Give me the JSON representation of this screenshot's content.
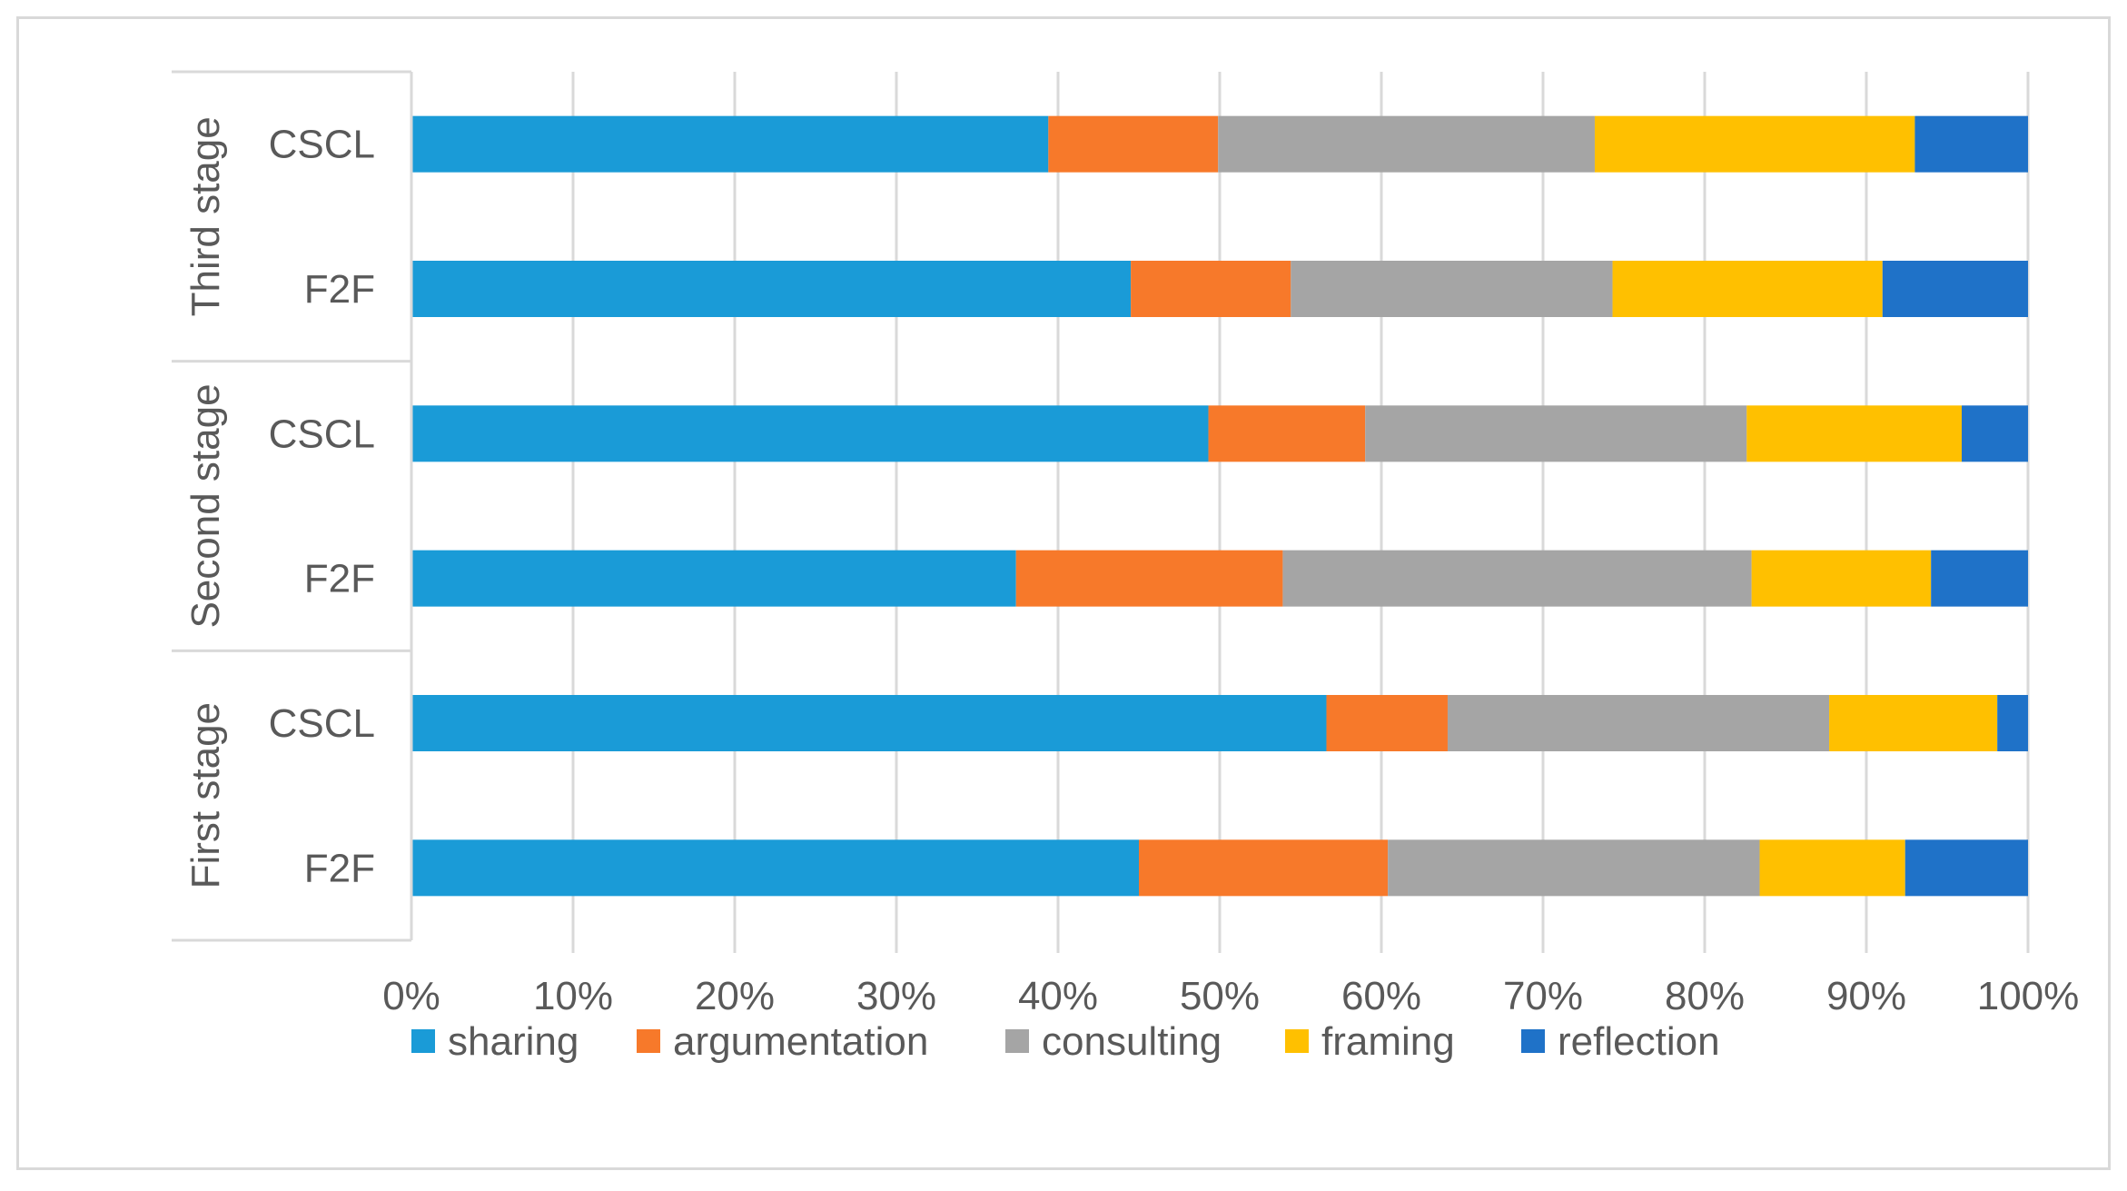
{
  "chart_data": {
    "type": "bar",
    "orientation": "horizontal",
    "stacking": "percent",
    "title": "",
    "xlabel": "",
    "ylabel": "",
    "xlim": [
      0,
      100
    ],
    "x_ticks": [
      "0%",
      "10%",
      "20%",
      "30%",
      "40%",
      "50%",
      "60%",
      "70%",
      "80%",
      "90%",
      "100%"
    ],
    "grid": true,
    "legend_position": "bottom",
    "groups": [
      {
        "label": "Third stage",
        "categories": [
          "CSCL",
          "F2F"
        ]
      },
      {
        "label": "Second stage",
        "categories": [
          "CSCL",
          "F2F"
        ]
      },
      {
        "label": "First stage",
        "categories": [
          "CSCL",
          "F2F"
        ]
      }
    ],
    "rows": [
      {
        "group": "Third stage",
        "category": "CSCL"
      },
      {
        "group": "Third stage",
        "category": "F2F"
      },
      {
        "group": "Second stage",
        "category": "CSCL"
      },
      {
        "group": "Second stage",
        "category": "F2F"
      },
      {
        "group": "First stage",
        "category": "CSCL"
      },
      {
        "group": "First stage",
        "category": "F2F"
      }
    ],
    "series": [
      {
        "name": "sharing",
        "color": "#1a9bd7",
        "values": [
          39.4,
          44.5,
          49.3,
          37.4,
          56.6,
          45.0
        ]
      },
      {
        "name": "argumentation",
        "color": "#f7792a",
        "values": [
          10.5,
          9.9,
          9.7,
          16.5,
          7.5,
          15.4
        ]
      },
      {
        "name": "consulting",
        "color": "#a5a5a5",
        "values": [
          23.3,
          19.9,
          23.6,
          29.0,
          23.6,
          23.0
        ]
      },
      {
        "name": "framing",
        "color": "#ffc000",
        "values": [
          19.8,
          16.7,
          13.3,
          11.1,
          10.4,
          9.0
        ]
      },
      {
        "name": "reflection",
        "color": "#1f72c8",
        "values": [
          7.0,
          9.0,
          4.1,
          6.0,
          1.9,
          7.6
        ]
      }
    ]
  }
}
